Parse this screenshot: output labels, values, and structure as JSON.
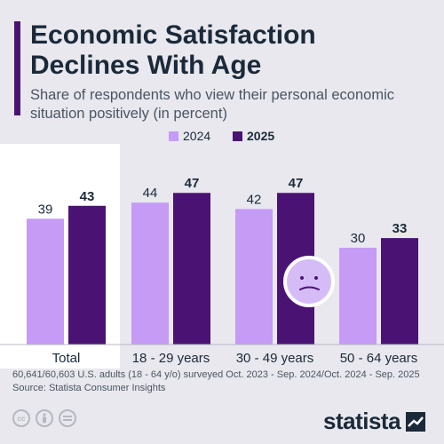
{
  "title": "Economic Satisfaction Declines With Age",
  "subtitle": "Share of respondents who view their personal economic situation positively (in percent)",
  "footnote": "60,641/60,603 U.S. adults (18 - 64 y/o) surveyed Oct. 2023 - Sep. 2024/Oct. 2024 - Sep. 2025",
  "source": "Source: Statista Consumer Insights",
  "brand": "statista",
  "icons": [
    "cc-icon",
    "by-icon",
    "nd-icon",
    "sad-face-icon",
    "statista-logo-icon"
  ],
  "colors": {
    "series_2024": "#c59bf5",
    "series_2025": "#4a1373",
    "highlight_panel": "#ffffff"
  },
  "chart_data": {
    "type": "bar",
    "categories": [
      "Total",
      "18 - 29 years",
      "30 - 49 years",
      "50 - 64 years"
    ],
    "series": [
      {
        "name": "2024",
        "values": [
          39,
          44,
          42,
          30
        ]
      },
      {
        "name": "2025",
        "values": [
          43,
          47,
          47,
          33
        ]
      }
    ],
    "ylim": [
      0,
      60
    ],
    "highlight_category": "Total",
    "legend": "top-right",
    "grid": false
  }
}
